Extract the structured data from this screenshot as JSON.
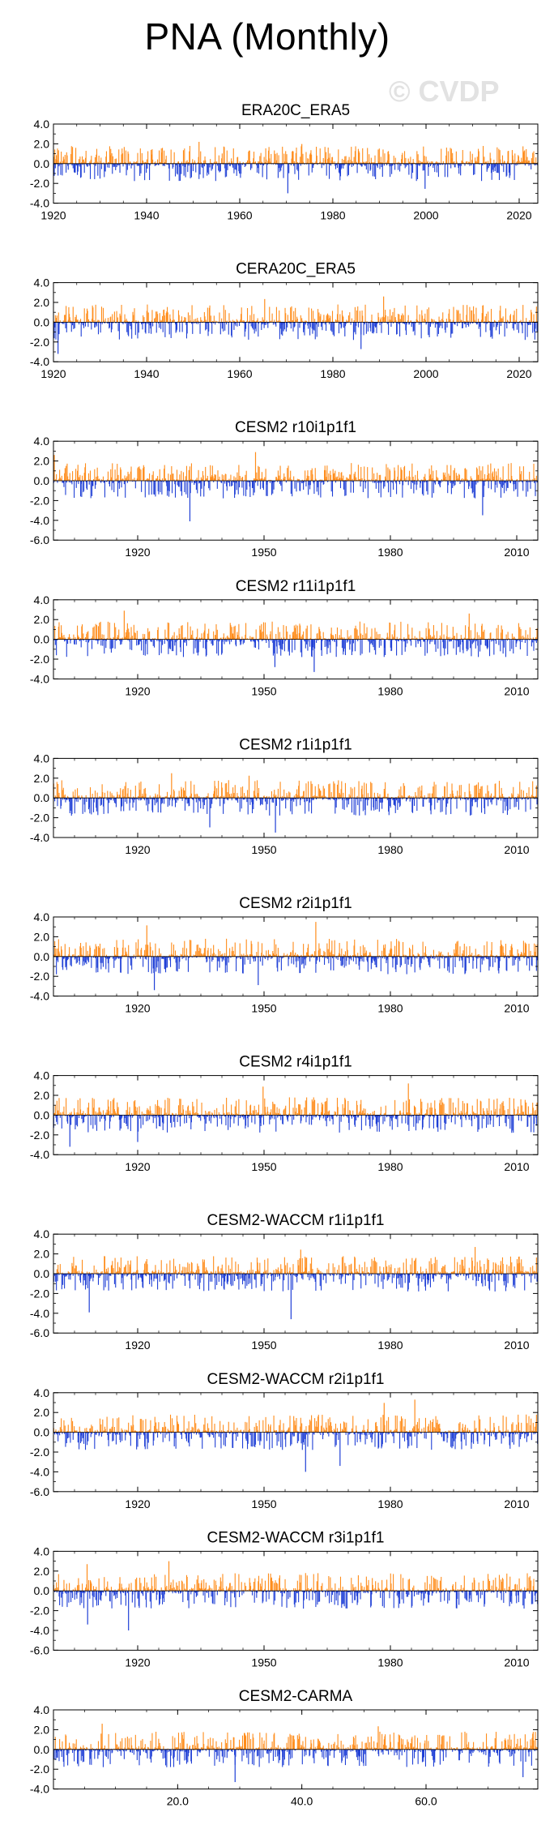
{
  "page": {
    "title": "PNA (Monthly)",
    "watermark": "© CVDP"
  },
  "colors": {
    "positive": "#ff8c1a",
    "negative": "#1f3fd6",
    "noise": "#d9d9d9",
    "axis": "#000000"
  },
  "chart_data": [
    {
      "type": "bar",
      "title": "ERA20C_ERA5",
      "x_range": [
        1920,
        2024
      ],
      "ylim": [
        -4,
        4
      ],
      "yticks": [
        4,
        2,
        0,
        -2,
        -4
      ],
      "ytick_labels": [
        "4.0",
        "2.0",
        "0.0",
        "-2.0",
        "-4.0"
      ],
      "xticks": [
        1920,
        1940,
        1960,
        1980,
        2000,
        2020
      ],
      "xtick_labels": [
        "1920",
        "1940",
        "1960",
        "1980",
        "2000",
        "2020"
      ],
      "peak_max": 2.2,
      "trough_min": -3.0,
      "series": "monthly PNA index"
    },
    {
      "type": "bar",
      "title": "CERA20C_ERA5",
      "x_range": [
        1920,
        2024
      ],
      "ylim": [
        -4,
        4
      ],
      "yticks": [
        4,
        2,
        0,
        -2,
        -4
      ],
      "ytick_labels": [
        "4.0",
        "2.0",
        "0.0",
        "-2.0",
        "-4.0"
      ],
      "xticks": [
        1920,
        1940,
        1960,
        1980,
        2000,
        2020
      ],
      "xtick_labels": [
        "1920",
        "1940",
        "1960",
        "1980",
        "2000",
        "2020"
      ],
      "peak_max": 2.6,
      "trough_min": -3.2,
      "series": "monthly PNA index"
    },
    {
      "type": "bar",
      "title": "CESM2 r10i1p1f1",
      "x_range": [
        1900,
        2015
      ],
      "ylim": [
        -6,
        4
      ],
      "yticks": [
        4,
        2,
        0,
        -2,
        -4,
        -6
      ],
      "ytick_labels": [
        "4.0",
        "2.0",
        "0.0",
        "-2.0",
        "-4.0",
        "-6.0"
      ],
      "xticks": [
        1920,
        1950,
        1980,
        2010
      ],
      "xtick_labels": [
        "1920",
        "1950",
        "1980",
        "2010"
      ],
      "peak_max": 2.9,
      "trough_min": -4.1,
      "series": "monthly PNA index"
    },
    {
      "type": "bar",
      "title": "CESM2 r11i1p1f1",
      "x_range": [
        1900,
        2015
      ],
      "ylim": [
        -4,
        4
      ],
      "yticks": [
        4,
        2,
        0,
        -2,
        -4
      ],
      "ytick_labels": [
        "4.0",
        "2.0",
        "0.0",
        "-2.0",
        "-4.0"
      ],
      "xticks": [
        1920,
        1950,
        1980,
        2010
      ],
      "xtick_labels": [
        "1920",
        "1950",
        "1980",
        "2010"
      ],
      "peak_max": 2.9,
      "trough_min": -3.3,
      "series": "monthly PNA index"
    },
    {
      "type": "bar",
      "title": "CESM2 r1i1p1f1",
      "x_range": [
        1900,
        2015
      ],
      "ylim": [
        -4,
        4
      ],
      "yticks": [
        4,
        2,
        0,
        -2,
        -4
      ],
      "ytick_labels": [
        "4.0",
        "2.0",
        "0.0",
        "-2.0",
        "-4.0"
      ],
      "xticks": [
        1920,
        1950,
        1980,
        2010
      ],
      "xtick_labels": [
        "1920",
        "1950",
        "1980",
        "2010"
      ],
      "peak_max": 2.5,
      "trough_min": -3.5,
      "series": "monthly PNA index"
    },
    {
      "type": "bar",
      "title": "CESM2 r2i1p1f1",
      "x_range": [
        1900,
        2015
      ],
      "ylim": [
        -4,
        4
      ],
      "yticks": [
        4,
        2,
        0,
        -2,
        -4
      ],
      "ytick_labels": [
        "4.0",
        "2.0",
        "0.0",
        "-2.0",
        "-4.0"
      ],
      "xticks": [
        1920,
        1950,
        1980,
        2010
      ],
      "xtick_labels": [
        "1920",
        "1950",
        "1980",
        "2010"
      ],
      "peak_max": 3.5,
      "trough_min": -3.4,
      "series": "monthly PNA index"
    },
    {
      "type": "bar",
      "title": "CESM2 r4i1p1f1",
      "x_range": [
        1900,
        2015
      ],
      "ylim": [
        -4,
        4
      ],
      "yticks": [
        4,
        2,
        0,
        -2,
        -4
      ],
      "ytick_labels": [
        "4.0",
        "2.0",
        "0.0",
        "-2.0",
        "-4.0"
      ],
      "xticks": [
        1920,
        1950,
        1980,
        2010
      ],
      "xtick_labels": [
        "1920",
        "1950",
        "1980",
        "2010"
      ],
      "peak_max": 3.2,
      "trough_min": -3.2,
      "series": "monthly PNA index"
    },
    {
      "type": "bar",
      "title": "CESM2-WACCM r1i1p1f1",
      "x_range": [
        1900,
        2015
      ],
      "ylim": [
        -6,
        4
      ],
      "yticks": [
        4,
        2,
        0,
        -2,
        -4,
        -6
      ],
      "ytick_labels": [
        "4.0",
        "2.0",
        "0.0",
        "-2.0",
        "-4.0",
        "-6.0"
      ],
      "xticks": [
        1920,
        1950,
        1980,
        2010
      ],
      "xtick_labels": [
        "1920",
        "1950",
        "1980",
        "2010"
      ],
      "peak_max": 2.7,
      "trough_min": -4.6,
      "series": "monthly PNA index"
    },
    {
      "type": "bar",
      "title": "CESM2-WACCM r2i1p1f1",
      "x_range": [
        1900,
        2015
      ],
      "ylim": [
        -6,
        4
      ],
      "yticks": [
        4,
        2,
        0,
        -2,
        -4,
        -6
      ],
      "ytick_labels": [
        "4.0",
        "2.0",
        "0.0",
        "-2.0",
        "-4.0",
        "-6.0"
      ],
      "xticks": [
        1920,
        1950,
        1980,
        2010
      ],
      "xtick_labels": [
        "1920",
        "1950",
        "1980",
        "2010"
      ],
      "peak_max": 3.3,
      "trough_min": -4.0,
      "series": "monthly PNA index"
    },
    {
      "type": "bar",
      "title": "CESM2-WACCM r3i1p1f1",
      "x_range": [
        1900,
        2015
      ],
      "ylim": [
        -6,
        4
      ],
      "yticks": [
        4,
        2,
        0,
        -2,
        -4,
        -6
      ],
      "ytick_labels": [
        "4.0",
        "2.0",
        "0.0",
        "-2.0",
        "-4.0",
        "-6.0"
      ],
      "xticks": [
        1920,
        1950,
        1980,
        2010
      ],
      "xtick_labels": [
        "1920",
        "1950",
        "1980",
        "2010"
      ],
      "peak_max": 3.0,
      "trough_min": -4.0,
      "series": "monthly PNA index"
    },
    {
      "type": "bar",
      "title": "CESM2-CARMA",
      "x_range": [
        0,
        78
      ],
      "ylim": [
        -4,
        4
      ],
      "yticks": [
        4,
        2,
        0,
        -2,
        -4
      ],
      "ytick_labels": [
        "4.0",
        "2.0",
        "0.0",
        "-2.0",
        "-4.0"
      ],
      "xticks": [
        20,
        40,
        60
      ],
      "xtick_labels": [
        "20.0",
        "40.0",
        "60.0"
      ],
      "peak_max": 2.6,
      "trough_min": -3.3,
      "series": "monthly PNA index"
    }
  ]
}
